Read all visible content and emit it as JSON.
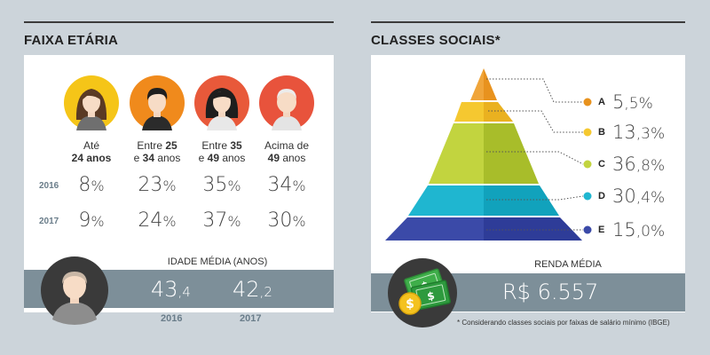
{
  "left": {
    "title": "FAIXA ETÁRIA",
    "groups": [
      {
        "line1": "Até",
        "line2_bold": "24",
        "line2_rest": " anos",
        "bold_first": false,
        "parts": [
          "Até",
          "24 anos"
        ]
      },
      {
        "parts": [
          "Entre ",
          "25",
          "e ",
          "34",
          " anos"
        ]
      },
      {
        "parts": [
          "Entre ",
          "35",
          "e ",
          "49",
          " anos"
        ]
      },
      {
        "parts": [
          "Acima de",
          "49",
          " anos"
        ]
      }
    ],
    "rows": [
      {
        "year": "2016",
        "values": [
          "8",
          "23",
          "35",
          "34"
        ]
      },
      {
        "year": "2017",
        "values": [
          "9",
          "24",
          "37",
          "30"
        ]
      }
    ],
    "pct_symbol": "%",
    "avg_title": "IDADE MÉDIA (ANOS)",
    "avgs": [
      {
        "int": "43",
        "dec": ",4",
        "year": "2016"
      },
      {
        "int": "42",
        "dec": ",2",
        "year": "2017"
      }
    ]
  },
  "right": {
    "title": "CLASSES SOCIAIS*",
    "classes": [
      {
        "letter": "A",
        "int": "5",
        "dec": ",5%",
        "color": "#f0a53a"
      },
      {
        "letter": "B",
        "int": "13",
        "dec": ",3%",
        "color": "#f5c830"
      },
      {
        "letter": "C",
        "int": "36",
        "dec": ",8%",
        "color": "#bfd33d"
      },
      {
        "letter": "D",
        "int": "30",
        "dec": ",4%",
        "color": "#1fb6d0"
      },
      {
        "letter": "E",
        "int": "15",
        "dec": ",0%",
        "color": "#3b4aa8"
      }
    ],
    "renda_title": "RENDA MÉDIA",
    "renda_value": "R$ 6.557",
    "footnote": "* Considerando classes sociais por faixas de salário mínimo (IBGE)"
  },
  "chart_data": [
    {
      "type": "table",
      "title": "FAIXA ETÁRIA",
      "categories": [
        "Até 24 anos",
        "Entre 25 e 34 anos",
        "Entre 35 e 49 anos",
        "Acima de 49 anos"
      ],
      "series": [
        {
          "name": "2016",
          "values": [
            8,
            23,
            35,
            34
          ]
        },
        {
          "name": "2017",
          "values": [
            9,
            24,
            37,
            30
          ]
        }
      ],
      "annotations": {
        "IDADE MÉDIA (ANOS)": {
          "2016": 43.4,
          "2017": 42.2
        }
      }
    },
    {
      "type": "bar",
      "title": "CLASSES SOCIAIS*",
      "categories": [
        "A",
        "B",
        "C",
        "D",
        "E"
      ],
      "values": [
        5.5,
        13.3,
        36.8,
        30.4,
        15.0
      ],
      "annotations": {
        "RENDA MÉDIA": "R$ 6.557"
      }
    }
  ],
  "colors": {
    "avatar_bg": [
      "#f5c518",
      "#f08a1c",
      "#e8593a",
      "#e8533c"
    ],
    "band": "#7d8f99",
    "money_green": "#2e9a3e",
    "coin": "#f4c21f"
  }
}
